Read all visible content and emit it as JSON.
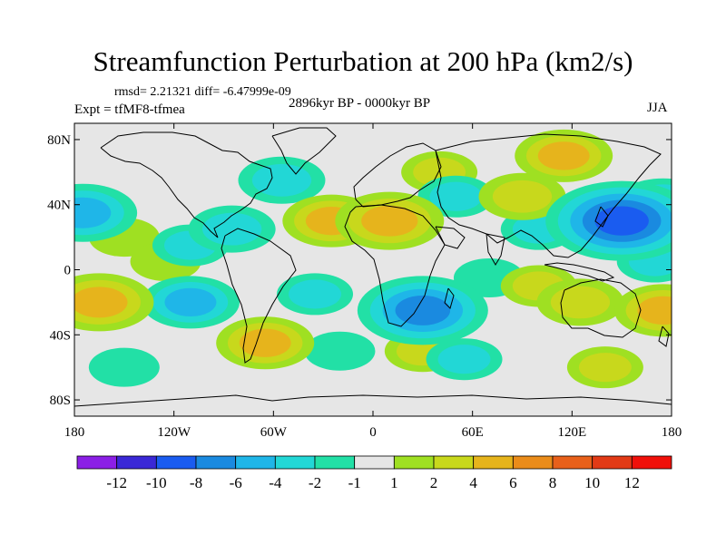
{
  "chart_data": {
    "type": "heatmap",
    "title": "Streamfunction Perturbation at 200 hPa (km2/s)",
    "stats_line": "rmsd= 2.21321 diff= -6.47999e-09",
    "left_label": "Expt = tfMF8-tfmea",
    "center_label": "2896kyr BP - 0000kyr BP",
    "right_label": "JJA",
    "x_ticks": [
      "180",
      "120W",
      "60W",
      "0",
      "60E",
      "120E",
      "180"
    ],
    "x_tick_values": [
      -180,
      -120,
      -60,
      0,
      60,
      120,
      180
    ],
    "y_ticks": [
      "80N",
      "40N",
      "0",
      "40S",
      "80S"
    ],
    "y_tick_values": [
      80,
      40,
      0,
      -40,
      -80
    ],
    "xlim": [
      -180,
      180
    ],
    "ylim": [
      -90,
      90
    ],
    "colorbar": {
      "labels": [
        "-12",
        "-10",
        "-8",
        "-6",
        "-4",
        "-2",
        "-1",
        "1",
        "2",
        "4",
        "6",
        "8",
        "10",
        "12"
      ],
      "levels": [
        -12,
        -10,
        -8,
        -6,
        -4,
        -2,
        -1,
        1,
        2,
        4,
        6,
        8,
        10,
        12
      ],
      "colors": [
        "#8b1fe6",
        "#3a28d6",
        "#1a5cf0",
        "#1a8ae0",
        "#1fb6e8",
        "#22d7d6",
        "#22e0a6",
        "#e6e6e6",
        "#9fe022",
        "#c8d81c",
        "#e6b41c",
        "#ea8c1a",
        "#e8601a",
        "#e23a16",
        "#f0100a"
      ]
    },
    "anomaly_centers": [
      {
        "lon": -175,
        "lat": 35,
        "value": -5
      },
      {
        "lon": -150,
        "lat": 20,
        "value": 1.5
      },
      {
        "lon": -85,
        "lat": 25,
        "value": -3
      },
      {
        "lon": -110,
        "lat": 15,
        "value": -2
      },
      {
        "lon": -55,
        "lat": 55,
        "value": -3
      },
      {
        "lon": -125,
        "lat": 5,
        "value": 1.5
      },
      {
        "lon": -25,
        "lat": 30,
        "value": 4
      },
      {
        "lon": 10,
        "lat": 30,
        "value": 5
      },
      {
        "lon": 40,
        "lat": 60,
        "value": 2
      },
      {
        "lon": 50,
        "lat": 45,
        "value": -2
      },
      {
        "lon": 90,
        "lat": 45,
        "value": 3
      },
      {
        "lon": 115,
        "lat": 70,
        "value": 4
      },
      {
        "lon": 100,
        "lat": 25,
        "value": -2
      },
      {
        "lon": 150,
        "lat": 30,
        "value": -9
      },
      {
        "lon": 175,
        "lat": 40,
        "value": -4
      },
      {
        "lon": 170,
        "lat": 5,
        "value": -2
      },
      {
        "lon": -165,
        "lat": -20,
        "value": 5
      },
      {
        "lon": -110,
        "lat": -20,
        "value": -4
      },
      {
        "lon": -35,
        "lat": -15,
        "value": -2
      },
      {
        "lon": 30,
        "lat": -25,
        "value": -7
      },
      {
        "lon": 70,
        "lat": -5,
        "value": -1.5
      },
      {
        "lon": 100,
        "lat": -10,
        "value": 2
      },
      {
        "lon": 125,
        "lat": -20,
        "value": 3
      },
      {
        "lon": 175,
        "lat": -25,
        "value": 4
      },
      {
        "lon": -65,
        "lat": -45,
        "value": 4
      },
      {
        "lon": 30,
        "lat": -50,
        "value": 2
      },
      {
        "lon": 55,
        "lat": -55,
        "value": -2
      },
      {
        "lon": -150,
        "lat": -60,
        "value": -1.5
      },
      {
        "lon": 140,
        "lat": -60,
        "value": 2
      },
      {
        "lon": -20,
        "lat": -50,
        "value": -1.5
      }
    ]
  }
}
